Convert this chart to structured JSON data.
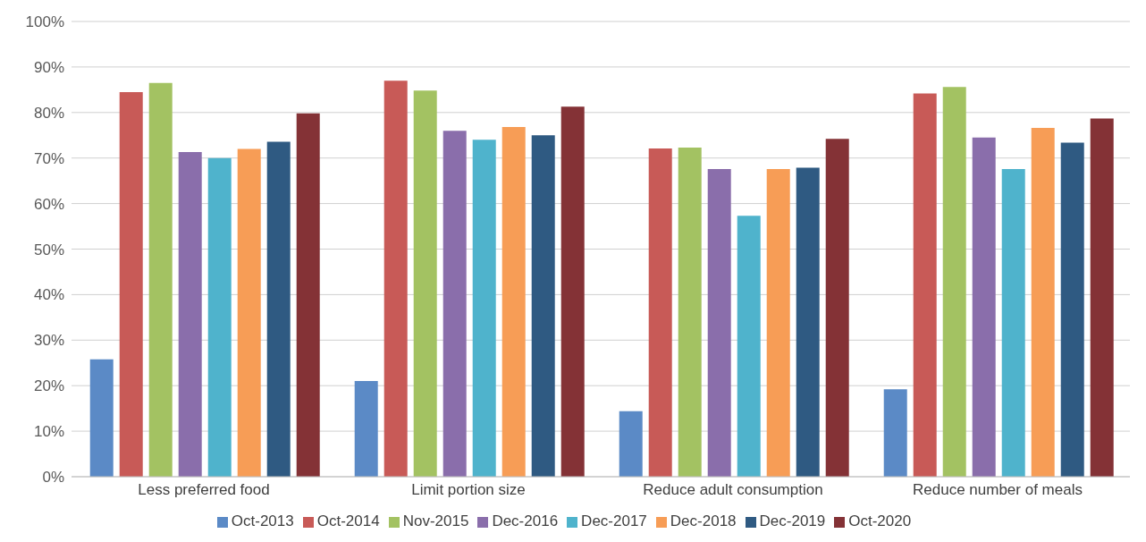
{
  "chart_data": {
    "type": "bar",
    "categories": [
      "Less preferred food",
      "Limit portion size",
      "Reduce adult consumption",
      "Reduce number of meals"
    ],
    "series": [
      {
        "name": "Oct-2013",
        "color": "#5b8ac6",
        "values": [
          25.8,
          21,
          14.4,
          19.2
        ]
      },
      {
        "name": "Oct-2014",
        "color": "#c85a57",
        "values": [
          84.5,
          87,
          72.1,
          84.2
        ]
      },
      {
        "name": "Nov-2015",
        "color": "#a3c262",
        "values": [
          86.5,
          84.8,
          72.3,
          85.6
        ]
      },
      {
        "name": "Dec-2016",
        "color": "#8a6eab",
        "values": [
          71.3,
          76,
          67.6,
          74.5
        ]
      },
      {
        "name": "Dec-2017",
        "color": "#4fb3cc",
        "values": [
          70,
          74,
          57.3,
          67.6
        ]
      },
      {
        "name": "Dec-2018",
        "color": "#f79d56",
        "values": [
          72,
          76.8,
          67.6,
          76.6
        ]
      },
      {
        "name": "Dec-2019",
        "color": "#2f5a82",
        "values": [
          73.6,
          75,
          67.9,
          73.4
        ]
      },
      {
        "name": "Oct-2020",
        "color": "#843236",
        "values": [
          79.8,
          81.3,
          74.2,
          78.7
        ]
      }
    ],
    "ylim": [
      0,
      100
    ],
    "yticks": [
      {
        "value": 0,
        "label": "0%"
      },
      {
        "value": 10,
        "label": "10%"
      },
      {
        "value": 20,
        "label": "20%"
      },
      {
        "value": 30,
        "label": "30%"
      },
      {
        "value": 40,
        "label": "40%"
      },
      {
        "value": 50,
        "label": "50%"
      },
      {
        "value": 60,
        "label": "60%"
      },
      {
        "value": 70,
        "label": "70%"
      },
      {
        "value": 80,
        "label": "80%"
      },
      {
        "value": 90,
        "label": "90%"
      },
      {
        "value": 100,
        "label": "100%"
      }
    ],
    "grid": "y",
    "legend": "bottom"
  }
}
